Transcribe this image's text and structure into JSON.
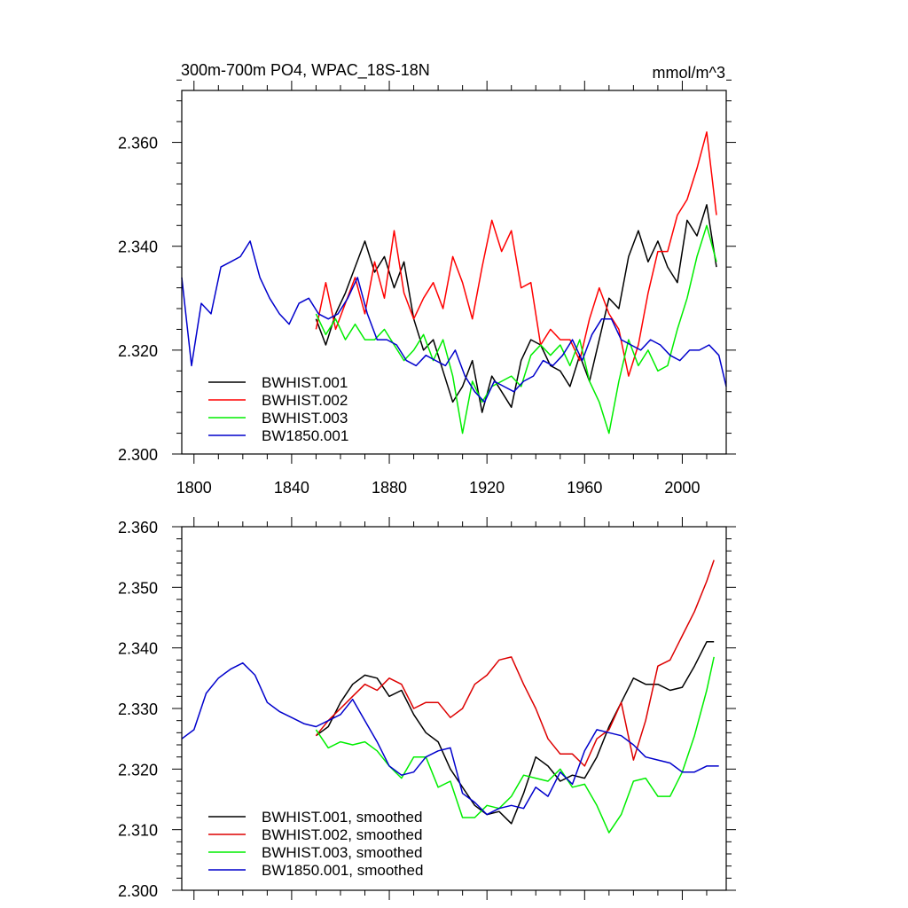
{
  "chart_data": [
    {
      "type": "line",
      "title": "300m-700m PO4, WPAC_18S-18N",
      "units": "mmol/m^3",
      "xlim": [
        1795,
        2018
      ],
      "ylim": [
        2.3,
        2.37
      ],
      "xticks": [
        1800,
        1840,
        1880,
        1920,
        1960,
        2000
      ],
      "xtick_labels": [
        "1800",
        "1840",
        "1880",
        "1920",
        "1960",
        "2000"
      ],
      "yticks": [
        2.3,
        2.32,
        2.34,
        2.36
      ],
      "ytick_labels": [
        "2.300",
        "2.320",
        "2.340",
        "2.360"
      ],
      "legend_position": "bottom-left",
      "series": [
        {
          "name": "BWHIST.001",
          "color": "#000000",
          "x": [
            1850,
            1854,
            1858,
            1862,
            1866,
            1870,
            1874,
            1878,
            1882,
            1886,
            1890,
            1894,
            1898,
            1902,
            1906,
            1910,
            1914,
            1918,
            1922,
            1926,
            1930,
            1934,
            1938,
            1942,
            1946,
            1950,
            1954,
            1958,
            1962,
            1966,
            1970,
            1974,
            1978,
            1982,
            1986,
            1990,
            1994,
            1998,
            2002,
            2006,
            2010,
            2014
          ],
          "y": [
            2.326,
            2.321,
            2.327,
            2.331,
            2.336,
            2.341,
            2.335,
            2.338,
            2.332,
            2.337,
            2.326,
            2.32,
            2.322,
            2.316,
            2.31,
            2.313,
            2.318,
            2.308,
            2.315,
            2.312,
            2.309,
            2.318,
            2.322,
            2.321,
            2.317,
            2.316,
            2.313,
            2.319,
            2.314,
            2.322,
            2.33,
            2.328,
            2.338,
            2.343,
            2.337,
            2.341,
            2.336,
            2.333,
            2.345,
            2.342,
            2.348,
            2.336
          ]
        },
        {
          "name": "BWHIST.002",
          "color": "#ff0000",
          "x": [
            1850,
            1854,
            1858,
            1862,
            1866,
            1870,
            1874,
            1878,
            1882,
            1886,
            1890,
            1894,
            1898,
            1902,
            1906,
            1910,
            1914,
            1918,
            1922,
            1926,
            1930,
            1934,
            1938,
            1942,
            1946,
            1950,
            1954,
            1958,
            1962,
            1966,
            1970,
            1974,
            1978,
            1982,
            1986,
            1990,
            1994,
            1998,
            2002,
            2006,
            2010,
            2014
          ],
          "y": [
            2.324,
            2.333,
            2.324,
            2.329,
            2.334,
            2.327,
            2.337,
            2.33,
            2.343,
            2.331,
            2.326,
            2.33,
            2.333,
            2.328,
            2.338,
            2.333,
            2.326,
            2.336,
            2.345,
            2.339,
            2.343,
            2.332,
            2.333,
            2.321,
            2.324,
            2.322,
            2.322,
            2.318,
            2.326,
            2.332,
            2.327,
            2.324,
            2.315,
            2.321,
            2.331,
            2.339,
            2.339,
            2.346,
            2.349,
            2.355,
            2.362,
            2.346
          ]
        },
        {
          "name": "BWHIST.003",
          "color": "#00ee00",
          "x": [
            1850,
            1854,
            1858,
            1862,
            1866,
            1870,
            1874,
            1878,
            1882,
            1886,
            1890,
            1894,
            1898,
            1902,
            1906,
            1910,
            1914,
            1918,
            1922,
            1926,
            1930,
            1934,
            1938,
            1942,
            1946,
            1950,
            1954,
            1958,
            1962,
            1966,
            1970,
            1974,
            1978,
            1982,
            1986,
            1990,
            1994,
            1998,
            2002,
            2006,
            2010,
            2014
          ],
          "y": [
            2.327,
            2.323,
            2.326,
            2.322,
            2.325,
            2.322,
            2.322,
            2.324,
            2.321,
            2.318,
            2.32,
            2.323,
            2.318,
            2.322,
            2.315,
            2.304,
            2.314,
            2.31,
            2.313,
            2.314,
            2.315,
            2.313,
            2.319,
            2.321,
            2.319,
            2.321,
            2.317,
            2.322,
            2.314,
            2.31,
            2.304,
            2.314,
            2.322,
            2.317,
            2.32,
            2.316,
            2.317,
            2.324,
            2.33,
            2.338,
            2.344,
            2.337
          ]
        },
        {
          "name": "BW1850.001",
          "color": "#0000cc",
          "x": [
            1795,
            1799,
            1803,
            1807,
            1811,
            1815,
            1819,
            1823,
            1827,
            1831,
            1835,
            1839,
            1843,
            1847,
            1851,
            1855,
            1859,
            1863,
            1867,
            1871,
            1875,
            1879,
            1883,
            1887,
            1891,
            1895,
            1899,
            1903,
            1907,
            1911,
            1915,
            1919,
            1923,
            1927,
            1931,
            1935,
            1939,
            1943,
            1947,
            1951,
            1955,
            1959,
            1963,
            1967,
            1971,
            1975,
            1979,
            1983,
            1987,
            1991,
            1995,
            1999,
            2003,
            2007,
            2011,
            2015,
            2018
          ],
          "y": [
            2.334,
            2.317,
            2.329,
            2.327,
            2.336,
            2.337,
            2.338,
            2.341,
            2.334,
            2.33,
            2.327,
            2.325,
            2.329,
            2.33,
            2.327,
            2.326,
            2.327,
            2.33,
            2.334,
            2.327,
            2.322,
            2.322,
            2.321,
            2.318,
            2.317,
            2.319,
            2.318,
            2.317,
            2.32,
            2.315,
            2.312,
            2.31,
            2.314,
            2.313,
            2.312,
            2.314,
            2.315,
            2.318,
            2.317,
            2.319,
            2.322,
            2.318,
            2.323,
            2.326,
            2.326,
            2.322,
            2.321,
            2.32,
            2.322,
            2.321,
            2.319,
            2.318,
            2.32,
            2.32,
            2.321,
            2.319,
            2.313
          ]
        }
      ]
    },
    {
      "type": "line",
      "xlim": [
        1795,
        2018
      ],
      "ylim": [
        2.3,
        2.36
      ],
      "xticks": [
        1800,
        1840,
        1880,
        1920,
        1960,
        2000
      ],
      "yticks": [
        2.3,
        2.31,
        2.32,
        2.33,
        2.34,
        2.35,
        2.36
      ],
      "ytick_labels": [
        "2.300",
        "2.310",
        "2.320",
        "2.330",
        "2.340",
        "2.350",
        "2.360"
      ],
      "legend_position": "bottom-left",
      "series": [
        {
          "name": "BWHIST.001, smoothed",
          "color": "#000000",
          "x": [
            1850,
            1855,
            1860,
            1865,
            1870,
            1875,
            1880,
            1885,
            1890,
            1895,
            1900,
            1905,
            1910,
            1915,
            1920,
            1925,
            1930,
            1935,
            1940,
            1945,
            1950,
            1955,
            1960,
            1965,
            1970,
            1975,
            1980,
            1985,
            1990,
            1995,
            2000,
            2005,
            2010,
            2013
          ],
          "y": [
            2.3255,
            2.327,
            2.331,
            2.334,
            2.3355,
            2.335,
            2.332,
            2.333,
            2.329,
            2.326,
            2.3245,
            2.32,
            2.317,
            2.314,
            2.3125,
            2.313,
            2.311,
            2.316,
            2.322,
            2.3205,
            2.318,
            2.319,
            2.3185,
            2.322,
            2.327,
            2.331,
            2.335,
            2.334,
            2.334,
            2.333,
            2.3335,
            2.337,
            2.341,
            2.341
          ]
        },
        {
          "name": "BWHIST.002, smoothed",
          "color": "#dd0000",
          "x": [
            1850,
            1855,
            1860,
            1865,
            1870,
            1875,
            1880,
            1885,
            1890,
            1895,
            1900,
            1905,
            1910,
            1915,
            1920,
            1925,
            1930,
            1935,
            1940,
            1945,
            1950,
            1955,
            1960,
            1965,
            1970,
            1975,
            1980,
            1985,
            1990,
            1995,
            2000,
            2005,
            2010,
            2013
          ],
          "y": [
            2.3255,
            2.328,
            2.33,
            2.332,
            2.334,
            2.333,
            2.335,
            2.334,
            2.33,
            2.331,
            2.331,
            2.3285,
            2.33,
            2.334,
            2.3355,
            2.338,
            2.3385,
            2.334,
            2.33,
            2.325,
            2.3225,
            2.3225,
            2.3205,
            2.325,
            2.3265,
            2.331,
            2.3215,
            2.328,
            2.337,
            2.338,
            2.342,
            2.346,
            2.351,
            2.3545
          ]
        },
        {
          "name": "BWHIST.003, smoothed",
          "color": "#00ee00",
          "x": [
            1850,
            1855,
            1860,
            1865,
            1870,
            1875,
            1880,
            1885,
            1890,
            1895,
            1900,
            1905,
            1910,
            1915,
            1920,
            1925,
            1930,
            1935,
            1940,
            1945,
            1950,
            1955,
            1960,
            1965,
            1970,
            1975,
            1980,
            1985,
            1990,
            1995,
            2000,
            2005,
            2010,
            2013
          ],
          "y": [
            2.3265,
            2.3235,
            2.3245,
            2.324,
            2.3245,
            2.323,
            2.3205,
            2.3185,
            2.322,
            2.322,
            2.317,
            2.318,
            2.312,
            2.312,
            2.314,
            2.3135,
            2.3155,
            2.319,
            2.3185,
            2.318,
            2.32,
            2.317,
            2.3175,
            2.314,
            2.3095,
            2.3125,
            2.318,
            2.3185,
            2.3155,
            2.3155,
            2.3195,
            2.3255,
            2.333,
            2.3385
          ]
        },
        {
          "name": "BW1850.001, smoothed",
          "color": "#0000cc",
          "x": [
            1795,
            1800,
            1805,
            1810,
            1815,
            1820,
            1825,
            1830,
            1835,
            1840,
            1845,
            1850,
            1855,
            1860,
            1865,
            1870,
            1875,
            1880,
            1885,
            1890,
            1895,
            1900,
            1905,
            1910,
            1915,
            1920,
            1925,
            1930,
            1935,
            1940,
            1945,
            1950,
            1955,
            1960,
            1965,
            1970,
            1975,
            1980,
            1985,
            1990,
            1995,
            2000,
            2005,
            2010,
            2015
          ],
          "y": [
            2.325,
            2.3265,
            2.3325,
            2.335,
            2.3365,
            2.3375,
            2.3355,
            2.331,
            2.3295,
            2.3285,
            2.3275,
            2.327,
            2.328,
            2.329,
            2.3315,
            2.328,
            2.3245,
            2.3205,
            2.319,
            2.3195,
            2.322,
            2.323,
            2.3235,
            2.316,
            2.3145,
            2.3125,
            2.3135,
            2.314,
            2.3135,
            2.317,
            2.3155,
            2.3195,
            2.3175,
            2.323,
            2.3265,
            2.326,
            2.3255,
            2.324,
            2.322,
            2.3215,
            2.321,
            2.3195,
            2.3195,
            2.3205,
            2.3205
          ]
        }
      ]
    }
  ]
}
